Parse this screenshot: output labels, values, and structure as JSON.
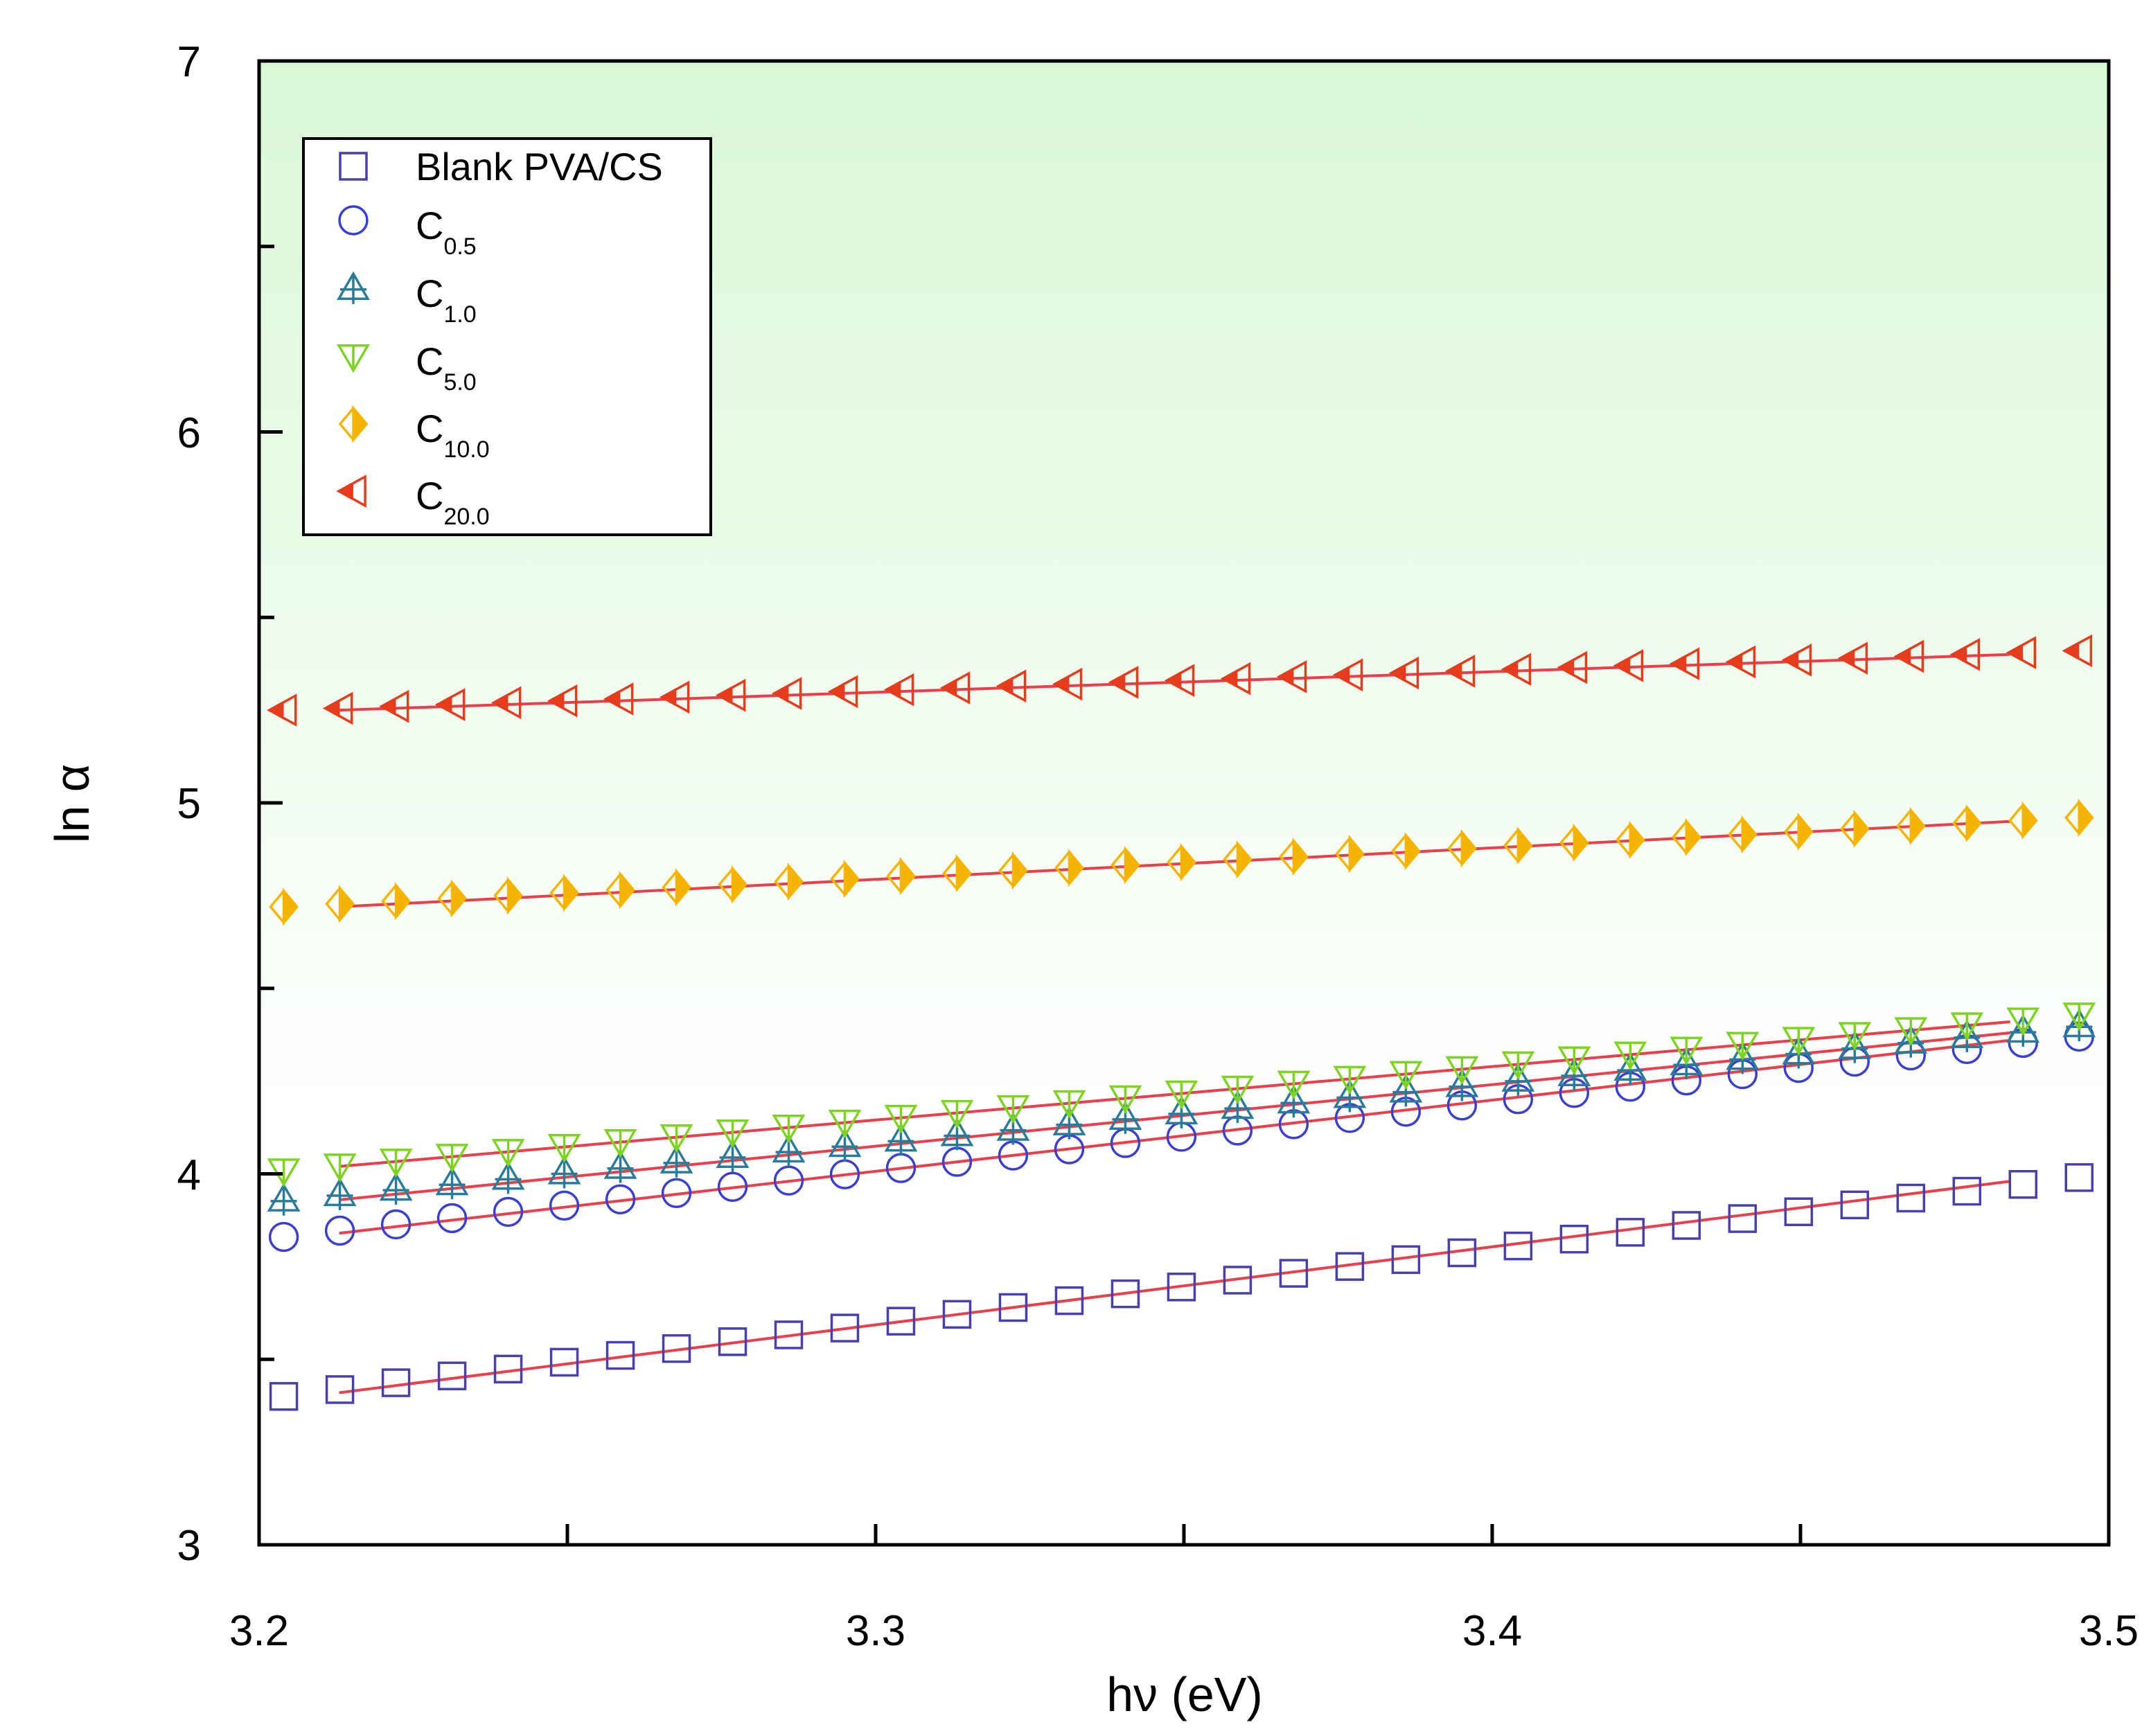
{
  "chart_data": {
    "type": "scatter",
    "title": "",
    "xlabel": "hν (eV)",
    "ylabel": "ln α",
    "xlim": [
      3.2,
      3.5
    ],
    "ylim": [
      3,
      7
    ],
    "x_ticks": [
      "3.2",
      "3.3",
      "3.4",
      "3.5"
    ],
    "y_ticks": [
      "3",
      "4",
      "5",
      "6",
      "7"
    ],
    "legend_position": "top-left",
    "background_gradient": [
      "#d9f8d6",
      "#ffffff"
    ],
    "fit_line_color": "#e8404a",
    "series": [
      {
        "name": "Blank PVA/CS",
        "base": "Blank PVA/CS",
        "sub": "",
        "marker": "square",
        "color": "#4a3fae",
        "x_start": 3.204,
        "x_step": 0.0091,
        "n": 33,
        "y_start": 3.4,
        "y_end": 3.99,
        "fit": {
          "x0": 3.213,
          "y0": 3.41,
          "x1": 3.484,
          "y1": 3.98
        }
      },
      {
        "name": "C0.5",
        "base": "C",
        "sub": "0.5",
        "marker": "circle",
        "color": "#3a3fd0",
        "x_start": 3.204,
        "x_step": 0.0091,
        "n": 33,
        "y_start": 3.83,
        "y_end": 4.37,
        "fit": {
          "x0": 3.213,
          "y0": 3.84,
          "x1": 3.484,
          "y1": 4.36
        }
      },
      {
        "name": "C1.0",
        "base": "C",
        "sub": "1.0",
        "marker": "triangle-up",
        "color": "#2a7a9a",
        "x_start": 3.204,
        "x_step": 0.0091,
        "n": 33,
        "y_start": 3.93,
        "y_end": 4.4,
        "fit": {
          "x0": 3.213,
          "y0": 3.93,
          "x1": 3.484,
          "y1": 4.38
        }
      },
      {
        "name": "C5.0",
        "base": "C",
        "sub": "5.0",
        "marker": "triangle-down",
        "color": "#7ed321",
        "x_start": 3.204,
        "x_step": 0.0091,
        "n": 33,
        "y_start": 4.01,
        "y_end": 4.43,
        "fit": {
          "x0": 3.213,
          "y0": 4.02,
          "x1": 3.484,
          "y1": 4.41
        }
      },
      {
        "name": "C10.0",
        "base": "C",
        "sub": "10.0",
        "marker": "diamond-half",
        "color": "#f4b400",
        "x_start": 3.204,
        "x_step": 0.0091,
        "n": 33,
        "y_start": 4.72,
        "y_end": 4.96,
        "fit": {
          "x0": 3.213,
          "y0": 4.72,
          "x1": 3.484,
          "y1": 4.95
        }
      },
      {
        "name": "C20.0",
        "base": "C",
        "sub": "20.0",
        "marker": "triangle-left-half",
        "color": "#e63c1e",
        "x_start": 3.204,
        "x_step": 0.0091,
        "n": 33,
        "y_start": 5.25,
        "y_end": 5.41,
        "fit": {
          "x0": 3.213,
          "y0": 5.25,
          "x1": 3.484,
          "y1": 5.4
        }
      }
    ]
  }
}
